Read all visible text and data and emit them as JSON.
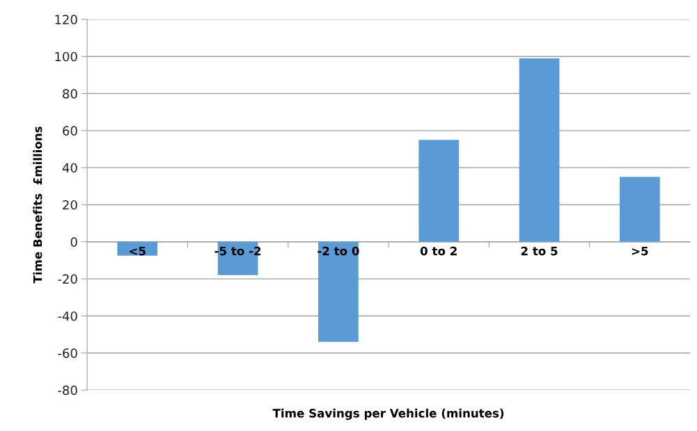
{
  "chart_data": {
    "type": "bar",
    "xlabel": "Time Savings per Vehicle (minutes)",
    "ylabel": "Time Benefits  £millions",
    "categories": [
      "<5",
      "-5 to -2",
      "-2 to 0",
      "0 to 2",
      "2 to 5",
      ">5"
    ],
    "values": [
      -7.5,
      -18,
      -54,
      55,
      99,
      35
    ],
    "color": "#5b9bd5",
    "ylim": [
      -80,
      120
    ],
    "yticks": [
      -80,
      -60,
      -40,
      -20,
      0,
      20,
      40,
      60,
      80,
      100,
      120
    ],
    "grid": "y"
  }
}
